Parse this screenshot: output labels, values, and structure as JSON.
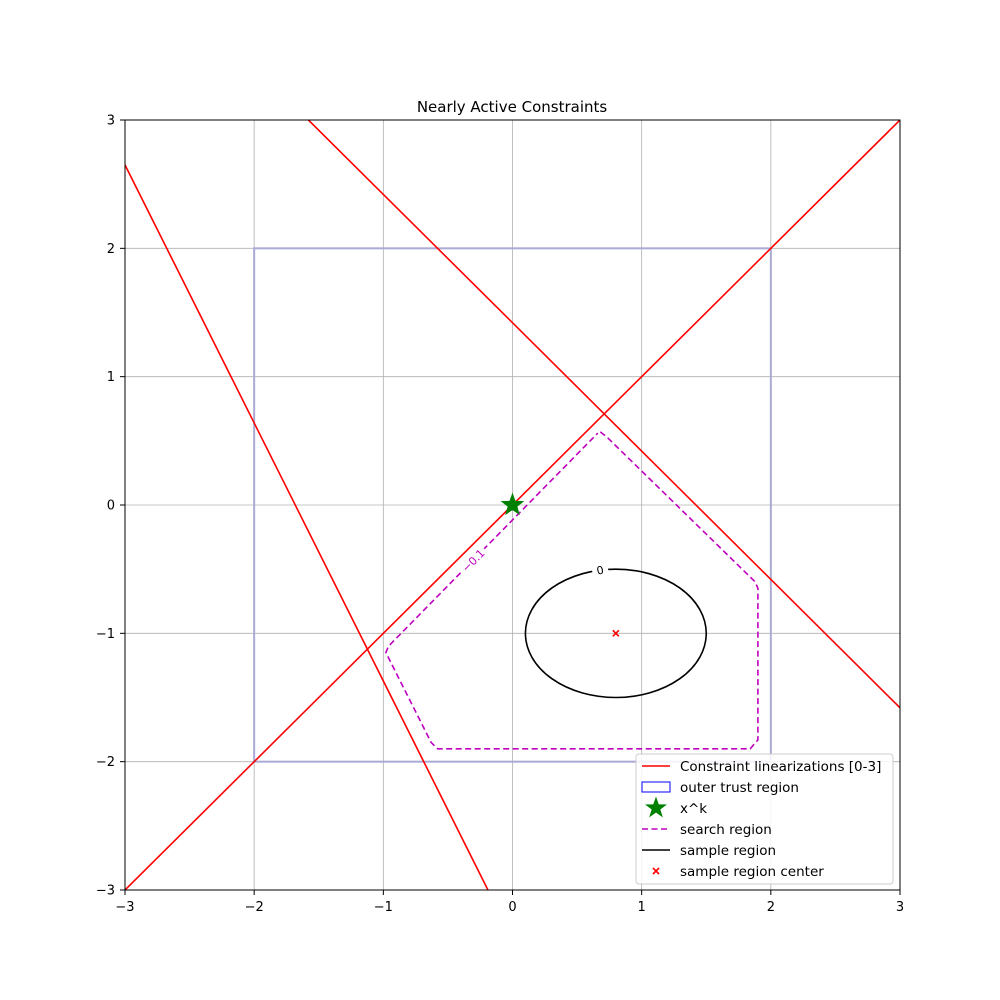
{
  "chart_data": {
    "type": "line",
    "title": "Nearly Active Constraints",
    "xlabel": "",
    "ylabel": "",
    "xlim": [
      -3,
      3
    ],
    "ylim": [
      -3,
      3
    ],
    "xticks": [
      -3,
      -2,
      -1,
      0,
      1,
      2,
      3
    ],
    "yticks": [
      -3,
      -2,
      -1,
      0,
      1,
      2,
      3
    ],
    "xtick_labels": [
      "−3",
      "−2",
      "−1",
      "0",
      "1",
      "2",
      "3"
    ],
    "ytick_labels": [
      "−3",
      "−2",
      "−1",
      "0",
      "1",
      "2",
      "3"
    ],
    "grid": true,
    "legend_position": "bottom-right",
    "constraint_lines": [
      {
        "points": [
          [
            -3,
            -3
          ],
          [
            3,
            3
          ]
        ]
      },
      {
        "points": [
          [
            -1.58,
            3
          ],
          [
            3,
            -1.58
          ]
        ]
      },
      {
        "points": [
          [
            -3,
            2.65
          ],
          [
            -0.19,
            -3
          ]
        ]
      }
    ],
    "outer_trust_region": {
      "x": [
        -2,
        2
      ],
      "y": [
        -2,
        2
      ]
    },
    "xk": [
      0,
      0
    ],
    "search_region": {
      "contour_label": "−0.1",
      "points": [
        [
          0.68,
          0.57
        ],
        [
          0.73,
          0.53
        ],
        [
          1.88,
          -0.6
        ],
        [
          1.9,
          -0.65
        ],
        [
          1.9,
          -1.83
        ],
        [
          1.84,
          -1.9
        ],
        [
          -0.58,
          -1.9
        ],
        [
          -0.63,
          -1.85
        ],
        [
          -0.98,
          -1.15
        ],
        [
          -0.96,
          -1.1
        ],
        [
          0.66,
          0.56
        ]
      ]
    },
    "sample_region": {
      "contour_label": "0",
      "center": [
        0.8,
        -1
      ],
      "rx": 0.7,
      "ry": 0.5
    },
    "legend": [
      {
        "label": "Constraint linearizations [0-3]",
        "kind": "line",
        "color": "#ff0000"
      },
      {
        "label": "outer trust region",
        "kind": "rect",
        "color": "#0000ff"
      },
      {
        "label": "x^k",
        "kind": "star",
        "color": "#008000"
      },
      {
        "label": "search region",
        "kind": "dashed",
        "color": "#bf00bf"
      },
      {
        "label": "sample region",
        "kind": "line",
        "color": "#000000"
      },
      {
        "label": "sample region center",
        "kind": "x",
        "color": "#ff0000"
      }
    ],
    "colors": {
      "constraint": "#ff0000",
      "outer_trust_region": "#aaaad4",
      "xk": "#008000",
      "search_region": "#bf00bf",
      "sample_region": "#000000",
      "sample_center": "#ff0000",
      "grid": "#b0b0b0"
    }
  }
}
